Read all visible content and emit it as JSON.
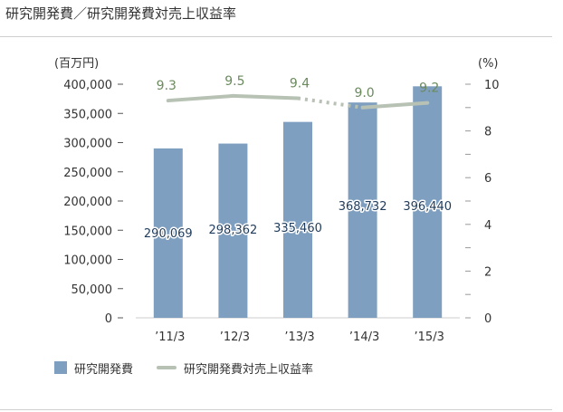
{
  "page": {
    "title": "研究開発費／研究開発費対売上収益率"
  },
  "legend": {
    "bar_label": "研究開発費",
    "line_label": "研究開発費対売上収益率"
  },
  "colors": {
    "bar": "#7f9fc0",
    "line": "#b7c2b4",
    "line_label": "#6b8a5e",
    "bar_label": "#1f3b5c"
  },
  "chart_data": {
    "type": "bar",
    "categories": [
      "’11/3",
      "’12/3",
      "’13/3",
      "’14/3",
      "’15/3"
    ],
    "series": [
      {
        "name": "研究開発費",
        "type": "bar",
        "axis": "left",
        "values": [
          290069,
          298362,
          335460,
          368732,
          396440
        ],
        "labels": [
          "290,069",
          "298,362",
          "335,460",
          "368,732",
          "396,440"
        ]
      },
      {
        "name": "研究開発費対売上収益率",
        "type": "line",
        "axis": "right",
        "values": [
          9.3,
          9.5,
          9.4,
          9.0,
          9.2
        ],
        "labels": [
          "9.3",
          "9.5",
          "9.4",
          "9.0",
          "9.2"
        ],
        "dashed_segments": [
          2
        ]
      }
    ],
    "y_left": {
      "unit": "(百万円)",
      "range": [
        0,
        400000
      ],
      "ticks": [
        "0",
        "50,000",
        "100,000",
        "150,000",
        "200,000",
        "250,000",
        "300,000",
        "350,000",
        "400,000"
      ]
    },
    "y_right": {
      "unit": "(%)",
      "range": [
        0,
        10
      ],
      "ticks": [
        "0",
        "2",
        "4",
        "6",
        "8",
        "10"
      ]
    },
    "grid": false,
    "legend_position": "bottom-left"
  }
}
